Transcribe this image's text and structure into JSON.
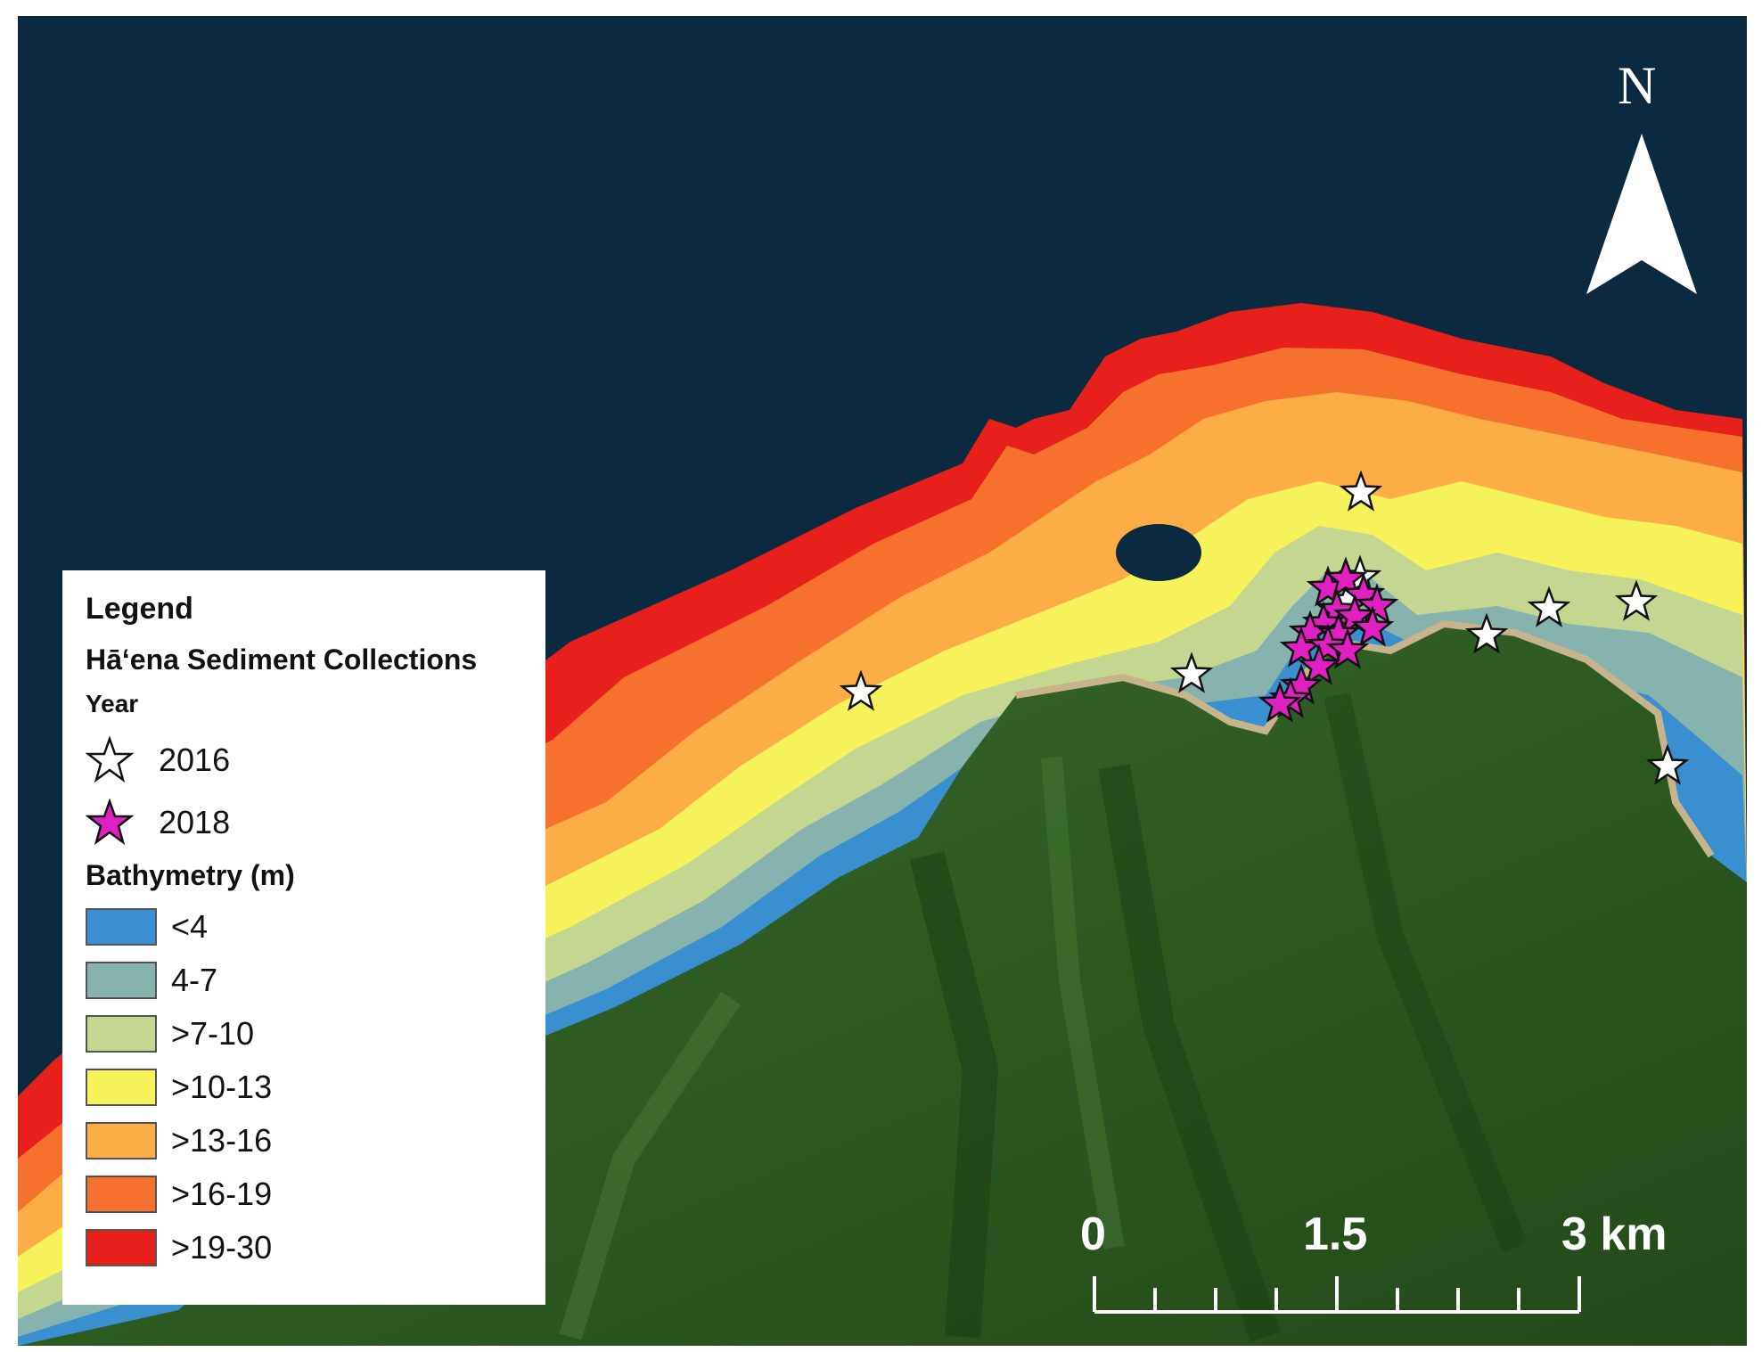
{
  "legend": {
    "title": "Legend",
    "subtitle": "Hā‘ena Sediment Collections",
    "year_label": "Year",
    "years": [
      {
        "label": "2016",
        "color": "#ffffff"
      },
      {
        "label": "2018",
        "color": "#e020c0"
      }
    ],
    "bathymetry_label": "Bathymetry (m)",
    "classes": [
      {
        "label": "<4",
        "color": "#3a8fd0"
      },
      {
        "label": "4-7",
        "color": "#86b3ad"
      },
      {
        "label": ">7-10",
        "color": "#c5d690"
      },
      {
        "label": ">10-13",
        "color": "#f6f25a"
      },
      {
        "label": ">13-16",
        "color": "#fcad45"
      },
      {
        "label": ">16-19",
        "color": "#f6702e"
      },
      {
        "label": ">19-30",
        "color": "#e8201c"
      }
    ]
  },
  "scale_bar": {
    "labels": [
      "0",
      "1.5",
      "3 km"
    ]
  },
  "north_arrow": {
    "label": "N"
  },
  "colors": {
    "ocean": "#0b2a3f",
    "land": "#2f5a22",
    "land_dark": "#1f4016",
    "beach": "#c8b48c"
  }
}
